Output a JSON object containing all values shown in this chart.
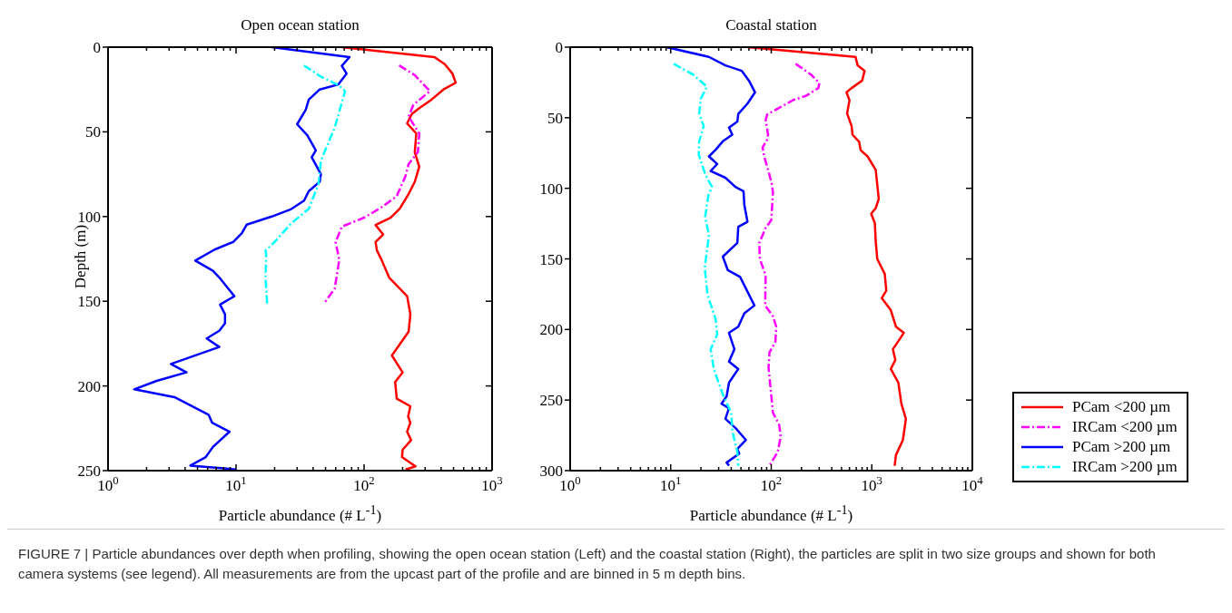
{
  "chart_data": [
    {
      "type": "line",
      "title": "Open ocean station",
      "xlabel": "Particle abundance (# L$^{-1}$)",
      "ylabel": "Depth (m)",
      "log": "x",
      "xlim": [
        1,
        1000
      ],
      "ylim": [
        250,
        0
      ],
      "xticks": [
        {
          "value": 1,
          "label": "10$^{0}$"
        },
        {
          "value": 2,
          "label": null
        },
        {
          "value": 3,
          "label": null
        },
        {
          "value": 4,
          "label": null
        },
        {
          "value": 5,
          "label": null
        },
        {
          "value": 6,
          "label": null
        },
        {
          "value": 7,
          "label": null
        },
        {
          "value": 8,
          "label": null
        },
        {
          "value": 9,
          "label": null
        },
        {
          "value": 10,
          "label": "10$^{1}$"
        },
        {
          "value": 20,
          "label": null
        },
        {
          "value": 30,
          "label": null
        },
        {
          "value": 40,
          "label": null
        },
        {
          "value": 50,
          "label": null
        },
        {
          "value": 60,
          "label": null
        },
        {
          "value": 70,
          "label": null
        },
        {
          "value": 80,
          "label": null
        },
        {
          "value": 90,
          "label": null
        },
        {
          "value": 100,
          "label": "10$^{2}$"
        },
        {
          "value": 200,
          "label": null
        },
        {
          "value": 300,
          "label": null
        },
        {
          "value": 400,
          "label": null
        },
        {
          "value": 500,
          "label": null
        },
        {
          "value": 600,
          "label": null
        },
        {
          "value": 700,
          "label": null
        },
        {
          "value": 800,
          "label": null
        },
        {
          "value": 900,
          "label": null
        },
        {
          "value": 1000,
          "label": "10$^{3}$"
        }
      ],
      "yticks": [
        0,
        50,
        100,
        150,
        200,
        250
      ],
      "series": [
        {
          "color": "#ff0000",
          "line_style": "solid",
          "x": [
            67,
            355,
            427,
            490,
            520,
            417,
            336,
            270,
            236,
            217,
            256,
            249,
            270,
            249,
            223,
            190,
            161,
            123,
            141,
            123,
            126,
            137,
            157,
            217,
            230,
            223,
            165,
            200,
            175,
            180,
            230,
            221,
            230,
            217,
            233,
            200,
            198,
            252,
            211
          ],
          "values": [
            0,
            5.9,
            10,
            15.6,
            21,
            25,
            31,
            36,
            39.5,
            45,
            51,
            62,
            70.6,
            79.5,
            86.6,
            95.4,
            100.7,
            105,
            110.6,
            115,
            120,
            125.6,
            136,
            147,
            157.7,
            168,
            182,
            192,
            197.7,
            207.5,
            212,
            218,
            221.7,
            227,
            232,
            237.7,
            242,
            247.5,
            249.3
          ]
        },
        {
          "color": "#ff00ff",
          "line_style": "dashdot",
          "x": [
            188,
            249,
            327,
            243,
            223,
            270,
            263,
            223,
            211,
            180,
            137,
            101,
            67,
            60,
            64,
            59,
            49
          ],
          "values": [
            10.8,
            16.5,
            26,
            34,
            41,
            51,
            62,
            69,
            76,
            88,
            94.5,
            100.5,
            106,
            115,
            125.6,
            142.5,
            151
          ]
        },
        {
          "color": "#0000ff",
          "line_style": "solid",
          "x": [
            19,
            77,
            67,
            73,
            63,
            45,
            37,
            35,
            30,
            36,
            42,
            39,
            46,
            45,
            37,
            34,
            27,
            19,
            12.1,
            11.1,
            9.5,
            6.8,
            4.8,
            6.6,
            7.6,
            9.7,
            7.5,
            8.2,
            8.2,
            7.4,
            5.9,
            7.4,
            3.1,
            4.1,
            2.4,
            1.6,
            3.3,
            6.1,
            6.5,
            8.9,
            6.6,
            5.8,
            4.4,
            10
          ],
          "values": [
            0,
            5.9,
            11,
            15.6,
            22,
            25,
            31,
            37,
            45.5,
            52,
            61,
            65,
            75,
            79.5,
            85,
            90.6,
            95.6,
            100,
            104.8,
            109.8,
            115,
            119.5,
            126,
            132,
            137,
            147,
            152,
            157.7,
            163,
            167.4,
            172,
            177,
            187,
            192,
            197,
            202,
            206.6,
            217,
            221.7,
            227,
            236,
            242,
            247,
            249.3
          ]
        },
        {
          "color": "#00ffff",
          "line_style": "dashdot",
          "x": [
            34,
            46,
            64,
            71,
            59,
            46,
            44,
            37,
            27,
            20,
            17,
            17.2,
            17,
            17.5
          ],
          "values": [
            10.8,
            17.4,
            22.7,
            26,
            47.5,
            67,
            81,
            95.4,
            104,
            115,
            120,
            122,
            136,
            152
          ]
        }
      ]
    },
    {
      "type": "line",
      "title": "Coastal station",
      "xlabel": "Particle abundance (# L$^{-1}$)",
      "log": "x",
      "xlim": [
        1,
        10000
      ],
      "ylim": [
        300,
        0
      ],
      "legend": "right",
      "xticks": [
        {
          "value": 1,
          "label": "10$^{0}$"
        },
        {
          "value": 2,
          "label": null
        },
        {
          "value": 3,
          "label": null
        },
        {
          "value": 4,
          "label": null
        },
        {
          "value": 5,
          "label": null
        },
        {
          "value": 6,
          "label": null
        },
        {
          "value": 7,
          "label": null
        },
        {
          "value": 8,
          "label": null
        },
        {
          "value": 9,
          "label": null
        },
        {
          "value": 10,
          "label": "10$^{1}$"
        },
        {
          "value": 20,
          "label": null
        },
        {
          "value": 30,
          "label": null
        },
        {
          "value": 40,
          "label": null
        },
        {
          "value": 50,
          "label": null
        },
        {
          "value": 60,
          "label": null
        },
        {
          "value": 70,
          "label": null
        },
        {
          "value": 80,
          "label": null
        },
        {
          "value": 90,
          "label": null
        },
        {
          "value": 100,
          "label": "10$^{2}$"
        },
        {
          "value": 200,
          "label": null
        },
        {
          "value": 300,
          "label": null
        },
        {
          "value": 400,
          "label": null
        },
        {
          "value": 500,
          "label": null
        },
        {
          "value": 600,
          "label": null
        },
        {
          "value": 700,
          "label": null
        },
        {
          "value": 800,
          "label": null
        },
        {
          "value": 900,
          "label": null
        },
        {
          "value": 1000,
          "label": "10$^{3}$"
        },
        {
          "value": 2000,
          "label": null
        },
        {
          "value": 3000,
          "label": null
        },
        {
          "value": 4000,
          "label": null
        },
        {
          "value": 5000,
          "label": null
        },
        {
          "value": 6000,
          "label": null
        },
        {
          "value": 7000,
          "label": null
        },
        {
          "value": 8000,
          "label": null
        },
        {
          "value": 9000,
          "label": null
        },
        {
          "value": 10000,
          "label": "10$^{4}$"
        }
      ],
      "yticks": [
        0,
        50,
        100,
        150,
        200,
        250,
        300
      ],
      "annotations": [
        "FIGURE 7 | Particle abundances over depth when profiling, showing the open ocean station (Left) and the coastal station (Right), the particles are split in two size groups and shown for both camera systems (see legend). All measurements are from the upcast part of the profile and are binned in 5 m depth bins."
      ],
      "series": [
        {
          "name": "PCam <200 µm",
          "color": "#ff0000",
          "line_style": "solid",
          "x": [
            58,
            689,
            723,
            848,
            802,
            630,
            560,
            600,
            568,
            630,
            643,
            748,
            775,
            908,
            1094,
            1173,
            1094,
            986,
            1072,
            1094,
            1133,
            1346,
            1394,
            1257,
            1546,
            1738,
            2081,
            1622,
            1714,
            1546,
            1837,
            1968,
            2183,
            2038,
            1738,
            1690
          ],
          "values": [
            0,
            6.9,
            12.9,
            16.8,
            23.7,
            29,
            32,
            37.6,
            47,
            56,
            62,
            67,
            73,
            77.4,
            87,
            107.5,
            114,
            118,
            124.7,
            137.6,
            150,
            160.7,
            172.4,
            177.8,
            186.3,
            198,
            202.4,
            214,
            221.6,
            228,
            237.7,
            252.6,
            263.3,
            278.3,
            289,
            296.5
          ]
        },
        {
          "name": "IRCam <200 µm",
          "color": "#ff00ff",
          "line_style": "dashdot",
          "x": [
            175,
            248,
            301,
            294,
            223,
            164,
            120,
            91,
            88,
            93,
            91,
            82,
            85,
            94,
            102,
            104,
            100,
            88,
            76,
            77,
            88,
            87,
            104,
            112,
            110,
            96,
            94,
            104,
            120,
            124,
            116,
            96
          ],
          "values": [
            11.8,
            19.4,
            25.4,
            29,
            34.4,
            37.6,
            43,
            47.7,
            51.6,
            62,
            65.6,
            71,
            77.4,
            88,
            97.8,
            103,
            122.6,
            128,
            138.7,
            150,
            161.8,
            183,
            190.6,
            198,
            208.8,
            216.3,
            227,
            259,
            267.6,
            276,
            286.8,
            296.5
          ]
        },
        {
          "name": "PCam >200 µm",
          "color": "#0000ff",
          "line_style": "solid",
          "x": [
            9.1,
            24,
            35,
            51,
            60,
            69,
            58,
            47,
            46,
            38,
            41,
            33,
            28,
            24,
            29,
            25,
            35,
            44,
            53,
            54,
            58,
            47,
            46,
            33,
            37,
            49,
            68,
            54,
            47,
            38,
            43,
            38,
            47,
            38,
            36,
            32,
            38,
            35,
            44,
            56,
            46,
            48,
            36,
            38
          ],
          "values": [
            0,
            6.9,
            12.9,
            16.8,
            23.7,
            32,
            40,
            47.3,
            52.7,
            57,
            62,
            66.7,
            72.7,
            77.4,
            82.8,
            87.7,
            92.5,
            99,
            102,
            111.8,
            123.7,
            127.3,
            138.7,
            148.4,
            158,
            162.8,
            183,
            188.5,
            198,
            202.4,
            214,
            222.7,
            228,
            237.7,
            247.3,
            252.6,
            255.8,
            263.3,
            269.7,
            278.3,
            284.7,
            288,
            294.3,
            296.5
          ]
        },
        {
          "name": "IRCam >200 µm",
          "color": "#00ffff",
          "line_style": "dashdot",
          "x": [
            10.7,
            16.7,
            22.9,
            19.9,
            19.2,
            21.3,
            19.2,
            19,
            22,
            25.7,
            23.7,
            22,
            24,
            21.8,
            23.3,
            28,
            29,
            25,
            26.8,
            33,
            40,
            41,
            46,
            47
          ],
          "values": [
            11.8,
            19.4,
            28,
            36.6,
            47.3,
            56,
            66.7,
            76,
            90,
            99,
            105,
            120.4,
            133,
            156.4,
            175.7,
            192.8,
            203.5,
            214,
            228,
            246,
            259,
            271.9,
            286.8,
            296.5
          ]
        }
      ]
    }
  ]
}
